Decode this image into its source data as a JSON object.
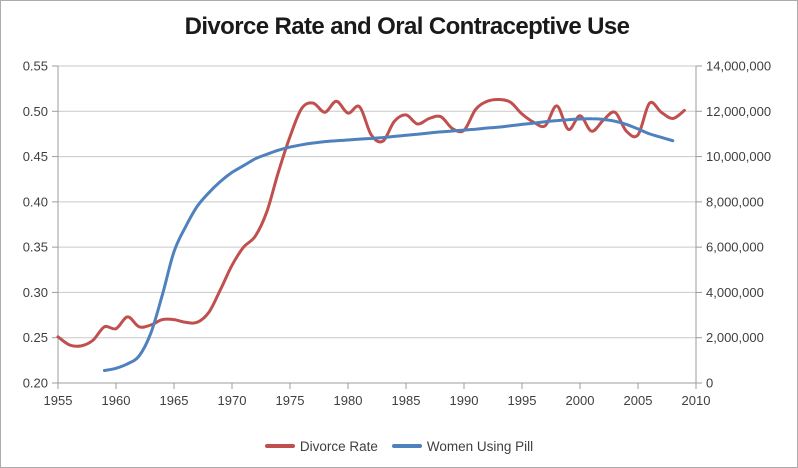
{
  "chart_data": {
    "type": "line",
    "title": "Divorce Rate and Oral Contraceptive Use",
    "grid": "horizontal",
    "legend_position": "bottom",
    "x_axis": {
      "min": 1955,
      "max": 2010,
      "tick_step": 5,
      "ticks": [
        {
          "value": 1955,
          "label": "1955"
        },
        {
          "value": 1960,
          "label": "1960"
        },
        {
          "value": 1965,
          "label": "1965"
        },
        {
          "value": 1970,
          "label": "1970"
        },
        {
          "value": 1975,
          "label": "1975"
        },
        {
          "value": 1980,
          "label": "1980"
        },
        {
          "value": 1985,
          "label": "1985"
        },
        {
          "value": 1990,
          "label": "1990"
        },
        {
          "value": 1995,
          "label": "1995"
        },
        {
          "value": 2000,
          "label": "2000"
        },
        {
          "value": 2005,
          "label": "2005"
        },
        {
          "value": 2010,
          "label": "2010"
        }
      ]
    },
    "y_left": {
      "min": 0.2,
      "max": 0.55,
      "tick_step": 0.05,
      "ticks": [
        {
          "value": 0.2,
          "label": "0.20"
        },
        {
          "value": 0.25,
          "label": "0.25"
        },
        {
          "value": 0.3,
          "label": "0.30"
        },
        {
          "value": 0.35,
          "label": "0.35"
        },
        {
          "value": 0.4,
          "label": "0.40"
        },
        {
          "value": 0.45,
          "label": "0.45"
        },
        {
          "value": 0.5,
          "label": "0.50"
        },
        {
          "value": 0.55,
          "label": "0.55"
        }
      ]
    },
    "y_right": {
      "min": 0,
      "max": 14000000,
      "tick_step": 2000000,
      "ticks": [
        {
          "value": 0,
          "label": "0"
        },
        {
          "value": 2000000,
          "label": "2,000,000"
        },
        {
          "value": 4000000,
          "label": "4,000,000"
        },
        {
          "value": 6000000,
          "label": "6,000,000"
        },
        {
          "value": 8000000,
          "label": "8,000,000"
        },
        {
          "value": 10000000,
          "label": "10,000,000"
        },
        {
          "value": 12000000,
          "label": "12,000,000"
        },
        {
          "value": 14000000,
          "label": "14,000,000"
        }
      ]
    },
    "series": [
      {
        "id": "divorce-rate",
        "name": "Divorce Rate",
        "axis": "left",
        "color": "#C0504D",
        "smooth": true,
        "years": [
          1955,
          1956,
          1957,
          1958,
          1959,
          1960,
          1961,
          1962,
          1963,
          1964,
          1965,
          1966,
          1967,
          1968,
          1969,
          1970,
          1971,
          1972,
          1973,
          1974,
          1975,
          1976,
          1977,
          1978,
          1979,
          1980,
          1981,
          1982,
          1983,
          1984,
          1985,
          1986,
          1987,
          1988,
          1989,
          1990,
          1991,
          1992,
          1993,
          1994,
          1995,
          1996,
          1997,
          1998,
          1999,
          2000,
          2001,
          2002,
          2003,
          2004,
          2005,
          2006,
          2007,
          2008,
          2009
        ],
        "values": [
          0.251,
          0.242,
          0.241,
          0.247,
          0.262,
          0.26,
          0.273,
          0.262,
          0.264,
          0.27,
          0.27,
          0.267,
          0.267,
          0.278,
          0.303,
          0.33,
          0.35,
          0.362,
          0.389,
          0.433,
          0.472,
          0.503,
          0.509,
          0.499,
          0.511,
          0.498,
          0.505,
          0.474,
          0.467,
          0.489,
          0.496,
          0.486,
          0.492,
          0.494,
          0.481,
          0.479,
          0.502,
          0.511,
          0.513,
          0.51,
          0.497,
          0.488,
          0.484,
          0.506,
          0.48,
          0.495,
          0.478,
          0.49,
          0.499,
          0.478,
          0.474,
          0.509,
          0.499,
          0.492,
          0.501
        ]
      },
      {
        "id": "women-using-pill",
        "name": "Women Using Pill",
        "axis": "right",
        "color": "#4F81BD",
        "smooth": true,
        "years": [
          1959,
          1960,
          1961,
          1962,
          1963,
          1964,
          1965,
          1966,
          1967,
          1968,
          1969,
          1970,
          1971,
          1972,
          1973,
          1974,
          1975,
          1976,
          1977,
          1978,
          1979,
          1980,
          1981,
          1982,
          1983,
          1984,
          1985,
          1986,
          1987,
          1988,
          1989,
          1990,
          1991,
          1992,
          1993,
          1994,
          1995,
          1996,
          1997,
          1998,
          1999,
          2000,
          2001,
          2002,
          2003,
          2004,
          2005,
          2006,
          2007,
          2008
        ],
        "values": [
          550000,
          650000,
          850000,
          1200000,
          2200000,
          3900000,
          5800000,
          6900000,
          7800000,
          8400000,
          8900000,
          9300000,
          9600000,
          9900000,
          10100000,
          10280000,
          10420000,
          10520000,
          10600000,
          10660000,
          10700000,
          10730000,
          10770000,
          10800000,
          10840000,
          10890000,
          10940000,
          10990000,
          11040000,
          11090000,
          11130000,
          11170000,
          11210000,
          11260000,
          11300000,
          11360000,
          11420000,
          11480000,
          11540000,
          11590000,
          11630000,
          11660000,
          11670000,
          11640000,
          11560000,
          11420000,
          11220000,
          11000000,
          10850000,
          10700000
        ]
      }
    ]
  },
  "styles": {
    "background": "#FFFFFF",
    "frame_border_color": "#ABABAB",
    "grid_color": "#C9C9C9",
    "axis_color": "#9C9C9C",
    "text_color": "#3F3F3F",
    "title_color": "#1A1A1A",
    "divorce_rate_color": "#C0504D",
    "women_using_pill_color": "#4F81BD"
  }
}
